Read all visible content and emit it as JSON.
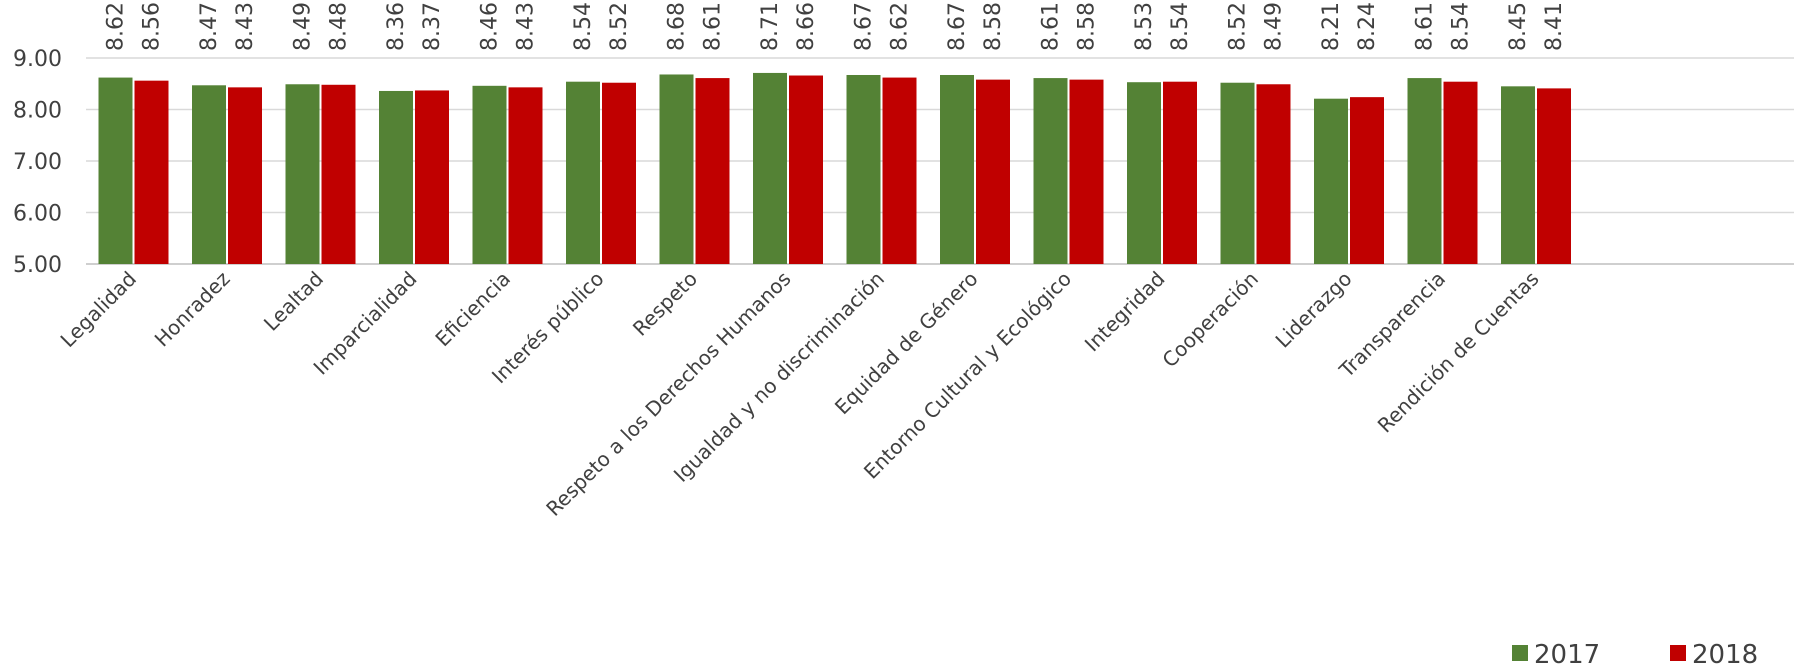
{
  "chart_data": {
    "type": "bar",
    "categories": [
      "Legalidad",
      "Honradez",
      "Lealtad",
      "Imparcialidad",
      "Eficiencia",
      "Interés público",
      "Respeto",
      "Respeto  a los Derechos Humanos",
      "Igualdad y no discriminación",
      "Equidad de Género",
      "Entorno Cultural y Ecológico",
      "Integridad",
      "Cooperación",
      "Liderazgo",
      "Transparencia",
      "Rendición de Cuentas"
    ],
    "series": [
      {
        "name": "2017",
        "color": "#548235",
        "values": [
          8.62,
          8.47,
          8.49,
          8.36,
          8.46,
          8.54,
          8.68,
          8.71,
          8.67,
          8.67,
          8.61,
          8.53,
          8.52,
          8.21,
          8.61,
          8.45
        ]
      },
      {
        "name": "2018",
        "color": "#c00000",
        "values": [
          8.56,
          8.43,
          8.48,
          8.37,
          8.43,
          8.52,
          8.61,
          8.66,
          8.62,
          8.58,
          8.58,
          8.54,
          8.49,
          8.24,
          8.54,
          8.41
        ]
      }
    ],
    "yticks": [
      "5.00",
      "6.00",
      "7.00",
      "8.00",
      "9.00"
    ],
    "ylim": [
      5,
      9
    ],
    "title": "",
    "xlabel": "",
    "ylabel": "",
    "grid": true,
    "legend_position": "bottom-right"
  }
}
